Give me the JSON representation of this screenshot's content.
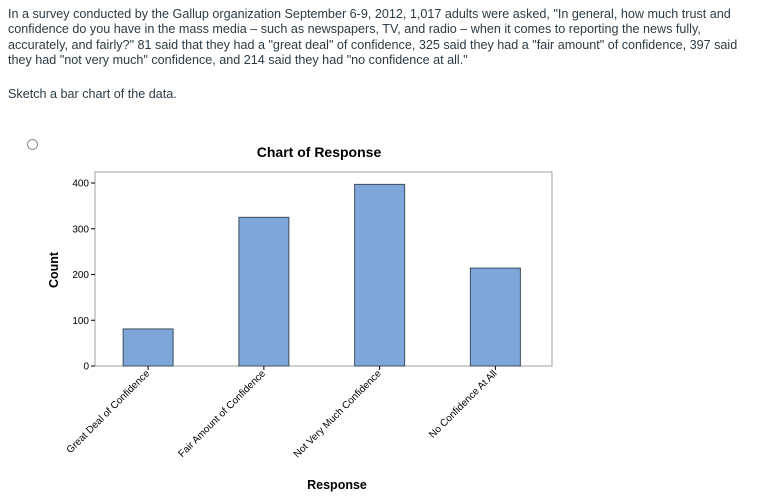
{
  "problem": {
    "text": "In a survey conducted by the Gallup organization September 6-9, 2012, 1,017 adults were asked, \"In general, how much trust and confidence do you have in the mass media – such as newspapers, TV, and radio – when it comes to reporting the news fully, accurately, and fairly?\" 81 said that they had a \"great deal\" of confidence, 325 said they had a \"fair amount\" of confidence, 397 said they had \"not very much\" confidence, and 214 said they had \"no confidence at all.\"",
    "instruction": "Sketch a bar chart of the data."
  },
  "chart_data": {
    "type": "bar",
    "title": "Chart of Response",
    "xlabel": "Response",
    "ylabel": "Count",
    "categories": [
      "Great Deal of Confidence",
      "Fair Amount of Confidence",
      "Not Very Much Confidence",
      "No Confidence At All"
    ],
    "values": [
      81,
      325,
      397,
      214
    ],
    "yticks": [
      0,
      100,
      200,
      300,
      400
    ],
    "ylim": [
      0,
      420
    ],
    "grid": false,
    "bar_color": "#7ea6d8",
    "bar_border": "#3f4d5f"
  }
}
